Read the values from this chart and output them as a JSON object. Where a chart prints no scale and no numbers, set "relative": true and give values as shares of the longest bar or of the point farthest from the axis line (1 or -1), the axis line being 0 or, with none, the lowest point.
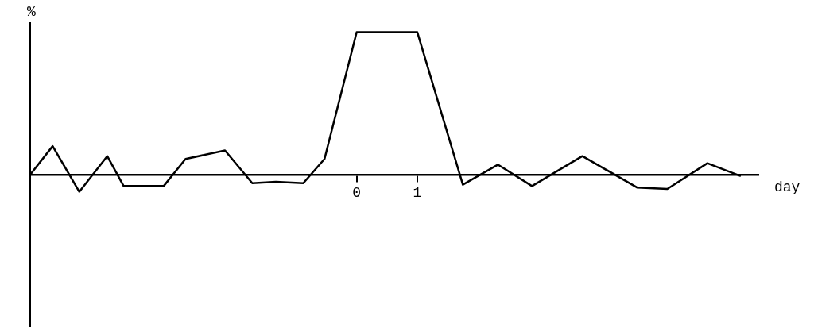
{
  "chart_data": {
    "type": "line",
    "relative": true,
    "xlabel": "day",
    "ylabel": "%",
    "xlim": [
      -5.38,
      6.62
    ],
    "xticks": [
      0,
      1
    ],
    "grid": false,
    "legend": false,
    "marker": "none",
    "line_style": "solid",
    "series": [
      {
        "color": "#000000",
        "x": [
          -5.38,
          -5.01,
          -4.57,
          -4.11,
          -3.84,
          -3.18,
          -2.82,
          -2.17,
          -1.72,
          -1.33,
          -0.88,
          -0.53,
          0,
          1,
          1.75,
          2.33,
          2.89,
          3.72,
          4.62,
          5.12,
          5.78,
          6.33
        ],
        "values": [
          0,
          0.2,
          -0.12,
          0.13,
          -0.08,
          -0.08,
          0.11,
          0.17,
          -0.06,
          -0.05,
          -0.06,
          0.11,
          1,
          1,
          -0.07,
          0.07,
          -0.08,
          0.13,
          -0.09,
          -0.1,
          0.08,
          -0.01
        ]
      }
    ]
  }
}
